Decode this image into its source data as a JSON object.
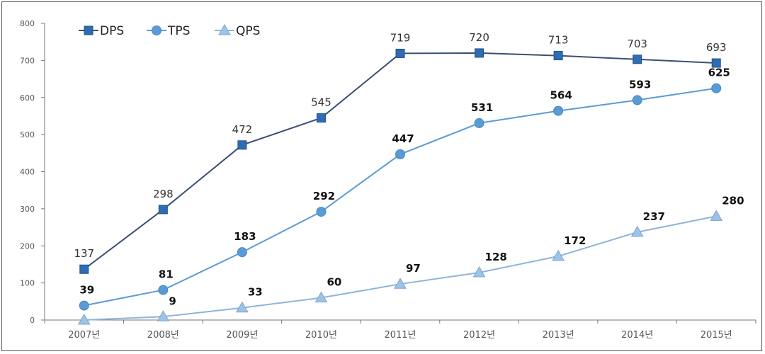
{
  "chart_data": {
    "type": "line",
    "title": "",
    "xlabel": "",
    "ylabel": "",
    "categories": [
      "2007년",
      "2008년",
      "2009년",
      "2010년",
      "2011년",
      "2012년",
      "2013년",
      "2014년",
      "2015년"
    ],
    "ylim": [
      0,
      800
    ],
    "yticks": [
      0,
      100,
      200,
      300,
      400,
      500,
      600,
      700,
      800
    ],
    "grid": false,
    "legend_position": "top-left",
    "series": [
      {
        "name": "DPS",
        "values": [
          137,
          298,
          472,
          545,
          719,
          720,
          713,
          703,
          693
        ],
        "marker": "square",
        "color": "#2e6db4",
        "line_color": "#3c4f73",
        "label_style": "normal"
      },
      {
        "name": "TPS",
        "values": [
          39,
          81,
          183,
          292,
          447,
          531,
          564,
          593,
          625
        ],
        "marker": "circle",
        "color": "#5b9bd5",
        "line_color": "#5b9bd5",
        "label_style": "bold"
      },
      {
        "name": "QPS",
        "values": [
          0,
          9,
          33,
          60,
          97,
          128,
          172,
          237,
          280
        ],
        "marker": "triangle",
        "color": "#9dc3e6",
        "line_color": "#8fb4d9",
        "label_style": "bold",
        "hidden_labels": [
          0
        ]
      }
    ]
  }
}
